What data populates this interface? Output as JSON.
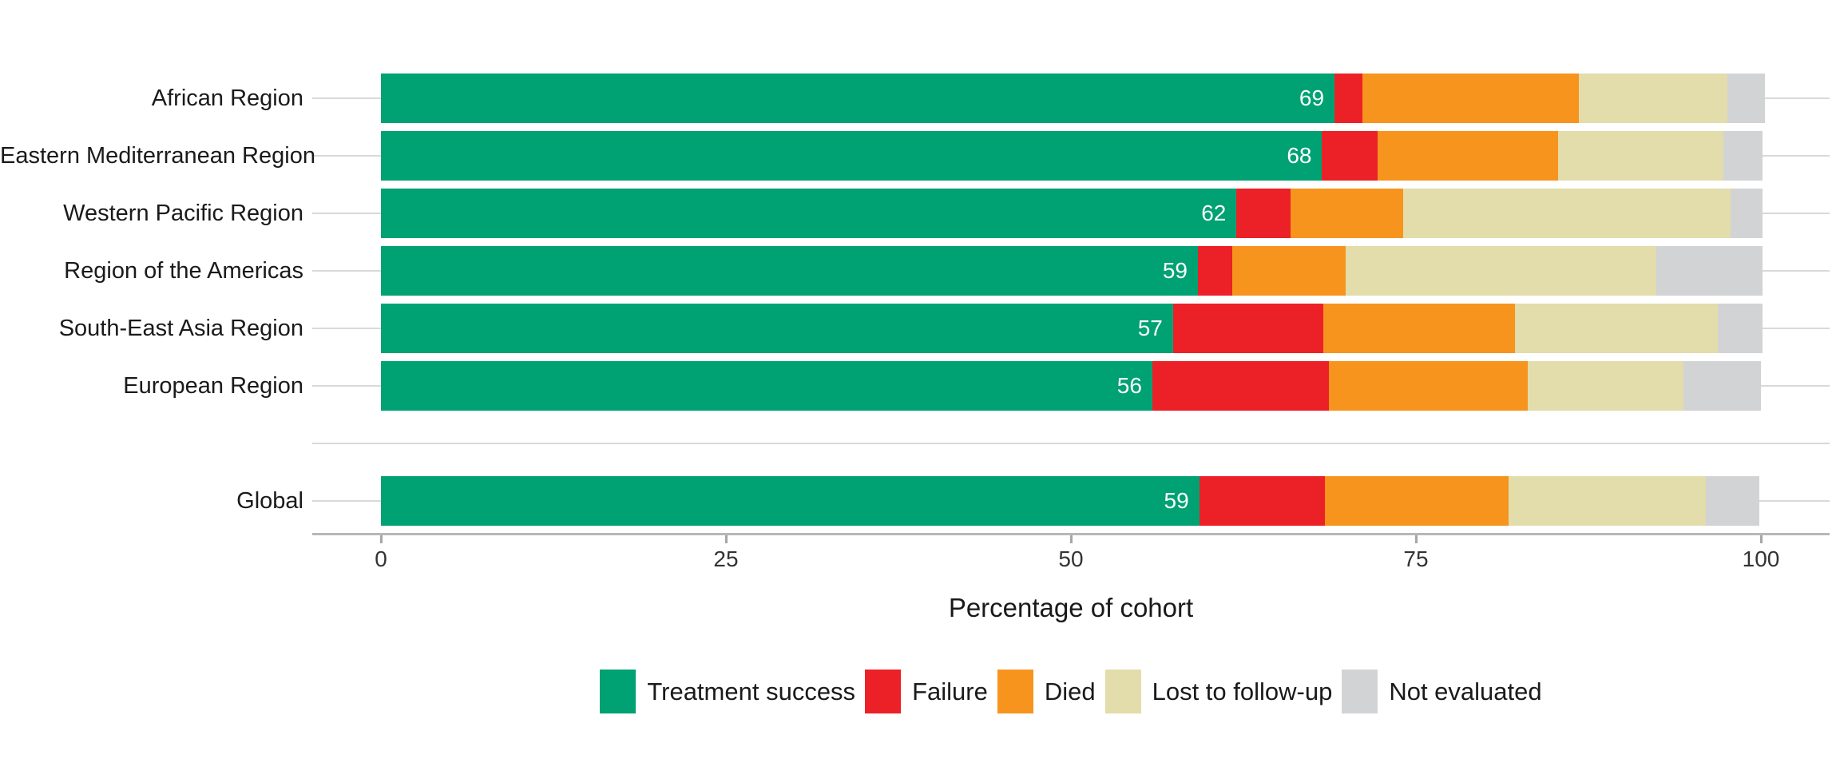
{
  "chart_data": {
    "type": "bar",
    "variant": "horizontal-stacked",
    "title": "",
    "xlabel": "Percentage of cohort",
    "ylabel": "",
    "xlim": [
      0,
      100
    ],
    "xticks": [
      0,
      25,
      50,
      75,
      100
    ],
    "grid": "horizontal-light",
    "legend_position": "bottom-center",
    "categories": [
      "African Region",
      "Eastern Mediterranean Region",
      "Western Pacific Region",
      "Region of the Americas",
      "South-East Asia Region",
      "European Region",
      "Global"
    ],
    "global_row_separated": true,
    "series": [
      {
        "name": "Treatment success",
        "color": "#00a173",
        "values": [
          69.1,
          68.2,
          62.0,
          59.2,
          57.4,
          55.9,
          59.3
        ]
      },
      {
        "name": "Failure",
        "color": "#ec2127",
        "values": [
          2.0,
          4.0,
          3.9,
          2.5,
          10.9,
          12.8,
          9.1
        ]
      },
      {
        "name": "Died",
        "color": "#f7941e",
        "values": [
          15.7,
          13.1,
          8.2,
          8.2,
          13.9,
          14.4,
          13.3
        ]
      },
      {
        "name": "Lost to follow-up",
        "color": "#e3dcab",
        "values": [
          10.8,
          12.0,
          23.7,
          22.5,
          14.7,
          11.3,
          14.3
        ]
      },
      {
        "name": "Not evaluated",
        "color": "#d2d3d4",
        "values": [
          2.7,
          2.8,
          2.3,
          7.7,
          3.2,
          5.6,
          3.9
        ]
      }
    ],
    "bar_value_labels": [
      "69",
      "68",
      "62",
      "59",
      "57",
      "56",
      "59"
    ],
    "colors": {
      "success": "#00a173",
      "failure": "#ec2127",
      "died": "#f7941e",
      "lost_to_follow_up": "#e3dcab",
      "not_evaluated": "#d2d3d4",
      "gridline": "#d9d9d9",
      "axis_line": "#b4b8ba",
      "text": "#1a1a1a",
      "bar_value_text": "#ffffff"
    },
    "legend": [
      "Treatment success",
      "Failure",
      "Died",
      "Lost to follow-up",
      "Not evaluated"
    ]
  }
}
